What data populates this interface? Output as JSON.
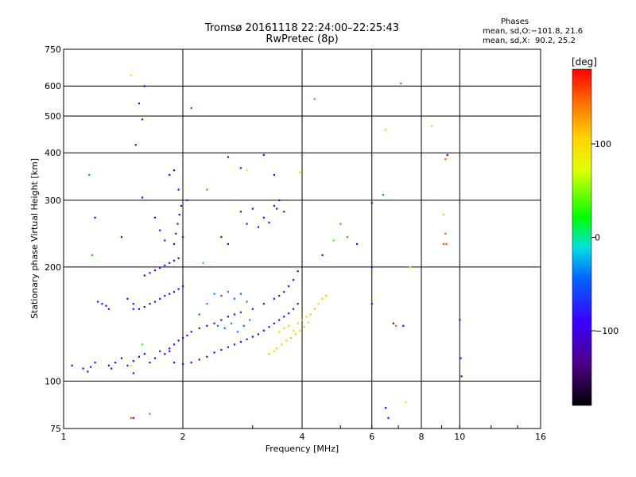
{
  "chart_data": {
    "type": "scatter",
    "title_line1": "Tromsø 20161118 22:24:00–22:25:43",
    "title_line2": "RwPretec (8p)",
    "phases_header": "Phases",
    "phases_o": "mean, sd,O:−101.8, 21.6",
    "phases_x": "mean, sd,X:  90.2, 25.2",
    "xlabel": "Frequency [MHz]",
    "ylabel": "Stationary phase Virtual Height [km]",
    "x_scale": "log",
    "y_scale": "log",
    "xlim": [
      1,
      16
    ],
    "ylim": [
      75,
      750
    ],
    "x_ticks": [
      1,
      2,
      4,
      6,
      8,
      10,
      16
    ],
    "x_tick_labels": [
      "1",
      "2",
      "4",
      "6",
      "8",
      "10",
      "16"
    ],
    "y_ticks": [
      75,
      100,
      200,
      300,
      400,
      500,
      600,
      750
    ],
    "y_tick_labels": [
      "75",
      "100",
      "200",
      "300",
      "400",
      "500",
      "600",
      "750"
    ],
    "grid": true,
    "colorbar": {
      "label": "[deg]",
      "range": [
        -180,
        180
      ],
      "ticks": [
        100,
        0,
        -100
      ],
      "tick_labels": [
        "100",
        "0",
        "−100"
      ]
    },
    "points": [
      [
        1.05,
        110,
        -100
      ],
      [
        1.12,
        108,
        -105
      ],
      [
        1.15,
        106,
        -100
      ],
      [
        1.17,
        109,
        -95
      ],
      [
        1.2,
        112,
        -100
      ],
      [
        1.3,
        110,
        -110
      ],
      [
        1.32,
        108,
        -100
      ],
      [
        1.35,
        112,
        -115
      ],
      [
        1.4,
        115,
        -100
      ],
      [
        1.45,
        110,
        -95
      ],
      [
        1.5,
        113,
        -100
      ],
      [
        1.55,
        116,
        -110
      ],
      [
        1.6,
        118,
        -100
      ],
      [
        1.65,
        112,
        -105
      ],
      [
        1.7,
        115,
        -100
      ],
      [
        1.75,
        120,
        -95
      ],
      [
        1.8,
        118,
        -100
      ],
      [
        1.85,
        122,
        -110
      ],
      [
        1.9,
        125,
        -100
      ],
      [
        1.95,
        128,
        -105
      ],
      [
        2.0,
        130,
        -100
      ],
      [
        2.05,
        132,
        -95
      ],
      [
        2.1,
        135,
        -100
      ],
      [
        2.2,
        138,
        -110
      ],
      [
        2.3,
        140,
        -100
      ],
      [
        2.4,
        142,
        -95
      ],
      [
        2.5,
        145,
        -100
      ],
      [
        2.6,
        148,
        -105
      ],
      [
        2.7,
        150,
        -100
      ],
      [
        2.8,
        152,
        -95
      ],
      [
        3.0,
        155,
        -100
      ],
      [
        3.2,
        160,
        -110
      ],
      [
        3.4,
        165,
        -100
      ],
      [
        3.5,
        168,
        -105
      ],
      [
        3.6,
        172,
        -100
      ],
      [
        3.7,
        178,
        -95
      ],
      [
        3.8,
        185,
        -100
      ],
      [
        3.9,
        195,
        -110
      ],
      [
        1.85,
        120,
        -105
      ],
      [
        1.9,
        112,
        -100
      ],
      [
        2.0,
        111,
        -100
      ],
      [
        2.1,
        112,
        -95
      ],
      [
        2.2,
        114,
        -100
      ],
      [
        2.3,
        116,
        -105
      ],
      [
        2.4,
        119,
        -100
      ],
      [
        2.5,
        121,
        -95
      ],
      [
        2.6,
        123,
        -100
      ],
      [
        2.7,
        125,
        -110
      ],
      [
        2.8,
        127,
        -100
      ],
      [
        2.9,
        129,
        -95
      ],
      [
        3.0,
        131,
        -100
      ],
      [
        3.1,
        133,
        -105
      ],
      [
        3.2,
        136,
        -100
      ],
      [
        3.3,
        139,
        -95
      ],
      [
        3.4,
        142,
        -100
      ],
      [
        3.5,
        145,
        -110
      ],
      [
        3.6,
        148,
        -100
      ],
      [
        3.7,
        151,
        -95
      ],
      [
        3.8,
        155,
        -100
      ],
      [
        3.9,
        160,
        -105
      ],
      [
        1.55,
        155,
        -100
      ],
      [
        1.6,
        157,
        -105
      ],
      [
        1.65,
        160,
        -100
      ],
      [
        1.7,
        162,
        -95
      ],
      [
        1.75,
        165,
        -100
      ],
      [
        1.8,
        168,
        -110
      ],
      [
        1.85,
        170,
        -100
      ],
      [
        1.9,
        172,
        -95
      ],
      [
        1.95,
        175,
        -100
      ],
      [
        2.0,
        178,
        -105
      ],
      [
        1.6,
        190,
        -110
      ],
      [
        1.65,
        193,
        -100
      ],
      [
        1.7,
        196,
        -115
      ],
      [
        1.75,
        199,
        -100
      ],
      [
        1.8,
        202,
        -95
      ],
      [
        1.85,
        205,
        -110
      ],
      [
        1.9,
        208,
        -100
      ],
      [
        1.95,
        211,
        -105
      ],
      [
        1.25,
        160,
        -100
      ],
      [
        1.28,
        158,
        -105
      ],
      [
        1.3,
        155,
        -100
      ],
      [
        1.22,
        162,
        -95
      ],
      [
        1.45,
        165,
        -100
      ],
      [
        1.5,
        160,
        -110
      ],
      [
        1.9,
        230,
        -100
      ],
      [
        1.92,
        245,
        -105
      ],
      [
        1.94,
        260,
        -100
      ],
      [
        1.96,
        275,
        -95
      ],
      [
        1.98,
        290,
        -100
      ],
      [
        2.0,
        240,
        -110
      ],
      [
        1.75,
        250,
        -100
      ],
      [
        1.8,
        235,
        -105
      ],
      [
        2.4,
        170,
        -30
      ],
      [
        2.5,
        168,
        -40
      ],
      [
        2.6,
        172,
        -30
      ],
      [
        2.7,
        165,
        -35
      ],
      [
        2.8,
        170,
        -40
      ],
      [
        2.9,
        162,
        -30
      ],
      [
        2.45,
        140,
        -35
      ],
      [
        2.55,
        138,
        -40
      ],
      [
        2.65,
        142,
        -30
      ],
      [
        2.75,
        135,
        -35
      ],
      [
        2.85,
        140,
        -40
      ],
      [
        2.95,
        145,
        -30
      ],
      [
        2.3,
        160,
        -30
      ],
      [
        2.2,
        150,
        -40
      ],
      [
        3.5,
        135,
        95
      ],
      [
        3.6,
        138,
        100
      ],
      [
        3.7,
        140,
        105
      ],
      [
        3.8,
        136,
        95
      ],
      [
        3.9,
        142,
        100
      ],
      [
        4.0,
        145,
        110
      ],
      [
        4.1,
        148,
        95
      ],
      [
        4.2,
        150,
        100
      ],
      [
        4.3,
        155,
        105
      ],
      [
        4.4,
        160,
        95
      ],
      [
        4.5,
        165,
        100
      ],
      [
        4.6,
        168,
        105
      ],
      [
        3.55,
        125,
        100
      ],
      [
        3.65,
        128,
        95
      ],
      [
        3.75,
        130,
        110
      ],
      [
        3.85,
        133,
        100
      ],
      [
        3.95,
        136,
        95
      ],
      [
        4.05,
        139,
        105
      ],
      [
        4.15,
        143,
        100
      ],
      [
        3.4,
        120,
        95
      ],
      [
        3.45,
        122,
        100
      ],
      [
        3.3,
        118,
        105
      ],
      [
        2.8,
        280,
        -100
      ],
      [
        3.0,
        285,
        -110
      ],
      [
        3.2,
        270,
        -100
      ],
      [
        3.4,
        290,
        -105
      ],
      [
        3.6,
        280,
        -100
      ],
      [
        2.9,
        260,
        -95
      ],
      [
        3.1,
        255,
        -100
      ],
      [
        3.3,
        262,
        -110
      ],
      [
        2.5,
        240,
        -100
      ],
      [
        2.6,
        230,
        -105
      ],
      [
        4.5,
        215,
        -100
      ],
      [
        4.8,
        235,
        30
      ],
      [
        5.0,
        260,
        150
      ],
      [
        5.2,
        240,
        150
      ],
      [
        5.5,
        230,
        -100
      ],
      [
        6.0,
        200,
        -100
      ],
      [
        6.0,
        160,
        -100
      ],
      [
        6.0,
        295,
        -100
      ],
      [
        4.3,
        555,
        150
      ],
      [
        3.2,
        395,
        -100
      ],
      [
        2.6,
        390,
        -100
      ],
      [
        2.9,
        360,
        90
      ],
      [
        2.3,
        320,
        150
      ],
      [
        2.8,
        365,
        -100
      ],
      [
        1.5,
        155,
        -100
      ],
      [
        1.58,
        490,
        -100
      ],
      [
        1.52,
        420,
        -100
      ],
      [
        1.55,
        540,
        -100
      ],
      [
        1.6,
        600,
        -100
      ],
      [
        1.48,
        640,
        80
      ],
      [
        1.85,
        350,
        -100
      ],
      [
        1.9,
        360,
        -100
      ],
      [
        1.58,
        305,
        -100
      ],
      [
        1.16,
        350,
        -30
      ],
      [
        1.2,
        270,
        -100
      ],
      [
        1.18,
        215,
        150
      ],
      [
        1.48,
        80,
        150
      ],
      [
        1.5,
        80,
        -100
      ],
      [
        1.58,
        125,
        30
      ],
      [
        1.48,
        110,
        60
      ],
      [
        1.5,
        105,
        -100
      ],
      [
        1.65,
        82,
        150
      ],
      [
        2.1,
        525,
        -50
      ],
      [
        3.95,
        355,
        100
      ],
      [
        6.4,
        310,
        -30
      ],
      [
        6.5,
        460,
        100
      ],
      [
        7.1,
        610,
        -30
      ],
      [
        7.5,
        200,
        80
      ],
      [
        8.5,
        470,
        100
      ],
      [
        9.2,
        385,
        150
      ],
      [
        9.3,
        395,
        -100
      ],
      [
        9.1,
        275,
        100
      ],
      [
        9.2,
        245,
        150
      ],
      [
        9.25,
        230,
        150
      ],
      [
        9.1,
        230,
        150
      ],
      [
        6.8,
        142,
        -100
      ],
      [
        6.9,
        140,
        150
      ],
      [
        7.2,
        140,
        -100
      ],
      [
        7.3,
        88,
        80
      ],
      [
        6.5,
        85,
        -100
      ],
      [
        6.6,
        80,
        -100
      ],
      [
        10.0,
        145,
        -100
      ],
      [
        10.05,
        115,
        -100
      ],
      [
        10.1,
        103,
        -100
      ],
      [
        3.4,
        350,
        -100
      ],
      [
        3.5,
        300,
        -100
      ],
      [
        3.45,
        285,
        -100
      ],
      [
        2.25,
        205,
        20
      ],
      [
        1.95,
        320,
        -100
      ],
      [
        2.05,
        300,
        -100
      ],
      [
        1.7,
        270,
        -100
      ],
      [
        1.4,
        240,
        -100
      ]
    ]
  }
}
